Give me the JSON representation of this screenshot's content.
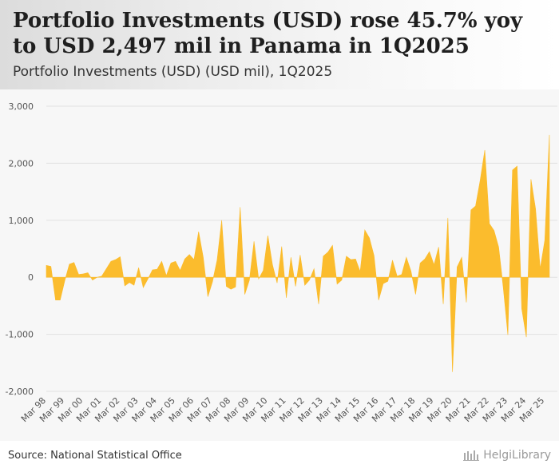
{
  "title": "Portfolio Investments (USD) rose 45.7% yoy to USD 2,497 mil in Panama in 1Q2025",
  "subtitle": "Portfolio Investments (USD) (USD mil), 1Q2025",
  "source": "Source: National Statistical Office",
  "brand": "HelgiLibrary",
  "colors": {
    "area": "#fbbc2d",
    "grid": "#e2e2e2",
    "axis_text": "#555555"
  },
  "chart_data": {
    "type": "area",
    "title": "Portfolio Investments (USD) (USD mil), 1Q2025",
    "xlabel": "",
    "ylabel": "",
    "ylim": [
      -2000,
      3000
    ],
    "yticks": [
      3000,
      2000,
      1000,
      0,
      -1000,
      -2000
    ],
    "ytick_labels": [
      "3,000",
      "2,000",
      "1,000",
      "0",
      "-1,000",
      "-2,000"
    ],
    "xtick_labels": [
      "Mar 98",
      "Mar 99",
      "Mar 00",
      "Mar 01",
      "Mar 02",
      "Mar 03",
      "Mar 04",
      "Mar 05",
      "Mar 06",
      "Mar 07",
      "Mar 08",
      "Mar 09",
      "Mar 10",
      "Mar 11",
      "Mar 12",
      "Mar 13",
      "Mar 14",
      "Mar 15",
      "Mar 16",
      "Mar 17",
      "Mar 18",
      "Mar 19",
      "Mar 20",
      "Mar 21",
      "Mar 22",
      "Mar 23",
      "Mar 24",
      "Mar 25"
    ],
    "series": [
      {
        "name": "Portfolio Investments (USD)",
        "start": "1Q1998",
        "values": [
          210,
          190,
          -400,
          -400,
          -60,
          230,
          260,
          50,
          60,
          80,
          -50,
          0,
          20,
          150,
          280,
          310,
          360,
          -150,
          -90,
          -140,
          170,
          -180,
          -30,
          130,
          140,
          280,
          30,
          250,
          280,
          120,
          320,
          400,
          310,
          800,
          350,
          -340,
          -80,
          300,
          1000,
          -160,
          -210,
          -170,
          1230,
          -300,
          -50,
          630,
          -30,
          120,
          730,
          220,
          -100,
          540,
          -360,
          350,
          -160,
          390,
          -140,
          -50,
          150,
          -470,
          370,
          440,
          560,
          -120,
          -50,
          370,
          310,
          320,
          100,
          830,
          690,
          380,
          -400,
          -110,
          -70,
          300,
          20,
          50,
          350,
          110,
          -300,
          250,
          320,
          450,
          220,
          530,
          -470,
          1040,
          -1660,
          180,
          350,
          -440,
          1180,
          1250,
          1700,
          2230,
          940,
          820,
          530,
          -180,
          -1010,
          1880,
          1950,
          -550,
          -1050,
          1720,
          1200,
          150,
          650,
          2497
        ]
      }
    ]
  }
}
